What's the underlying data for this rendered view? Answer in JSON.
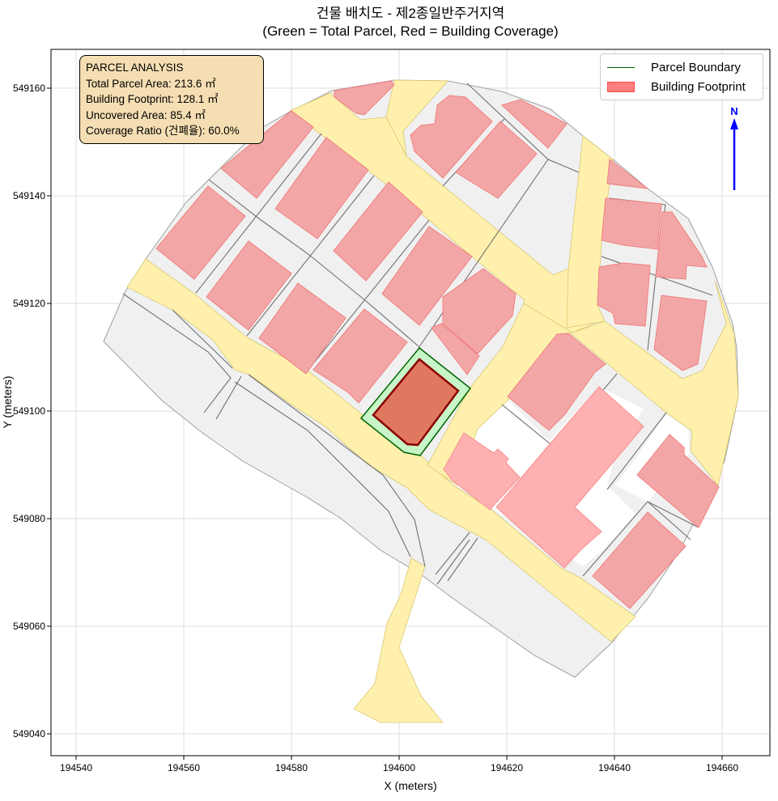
{
  "title": {
    "line1": "건물 배치도 - 제2종일반주거지역",
    "line2": "(Green = Total Parcel, Red = Building Coverage)"
  },
  "chart_data": {
    "type": "map",
    "xlabel": "X (meters)",
    "ylabel": "Y (meters)",
    "xlim": [
      194537,
      194669
    ],
    "ylim": [
      549036,
      549167
    ],
    "x_ticks": [
      194540,
      194560,
      194580,
      194600,
      194620,
      194640,
      194660
    ],
    "y_ticks": [
      549040,
      549060,
      549080,
      549100,
      549120,
      549140,
      549160
    ],
    "grid": true,
    "legend_placement": "top-right",
    "legend": [
      {
        "label": "Parcel Boundary",
        "kind": "line",
        "color": "#006400"
      },
      {
        "label": "Building Footprint",
        "kind": "patch",
        "color": "#ff8080"
      }
    ],
    "north_arrow": {
      "label": "N",
      "color": "#0000ff"
    }
  },
  "info_box": {
    "heading": "PARCEL ANALYSIS",
    "lines": [
      "Total Parcel Area: 213.6 ㎡",
      "Building Footprint: 128.1 ㎡",
      "Uncovered Area: 85.4 ㎡",
      "Coverage Ratio (건폐율): 60.0%"
    ]
  },
  "colors": {
    "parcel_fill": "#f0f0f0",
    "parcel_edge": "#707070",
    "road_fill": "#fff1ad",
    "building_fill": "#f3a6a6",
    "target_parcel_fill": "#c8f5c8",
    "target_parcel_edge": "#006400",
    "target_building_fill": "#e07860",
    "target_building_edge": "#8b0000"
  }
}
